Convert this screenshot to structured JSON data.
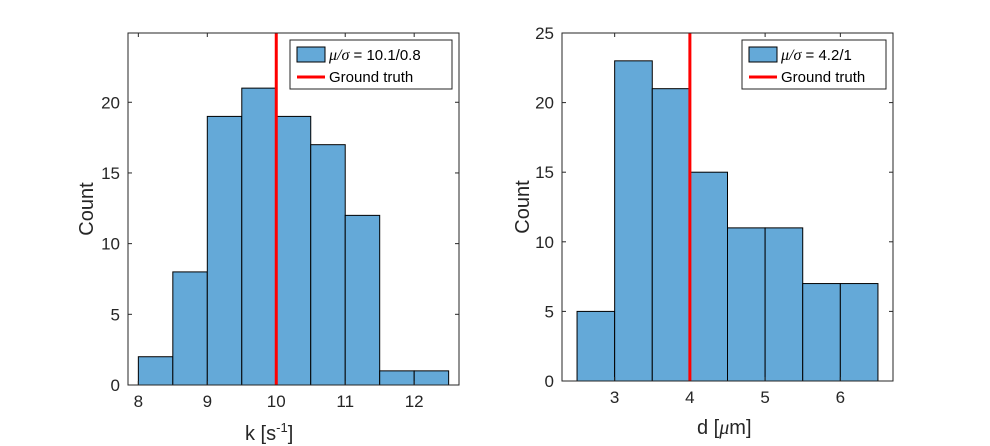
{
  "figure": {
    "bar_color": "#64a9d8",
    "truth_color": "#ff0000",
    "axes_color": "#262626"
  },
  "chart_data": [
    {
      "type": "bar",
      "title": "",
      "xlabel": "k [s",
      "xlabel_superscript": "-1",
      "xlabel_suffix": "]",
      "ylabel": "Count",
      "bin_edges": [
        8,
        8.5,
        9,
        9.5,
        10,
        10.5,
        11,
        11.5,
        12,
        12.5
      ],
      "values": [
        2,
        8,
        19,
        21,
        19,
        17,
        12,
        1,
        1
      ],
      "xlim": [
        7.85,
        12.65
      ],
      "ylim": [
        0,
        24.9
      ],
      "xticks": [
        8,
        9,
        10,
        11,
        12
      ],
      "xtick_labels": [
        "8",
        "9",
        "10",
        "11",
        "12"
      ],
      "yticks": [
        0,
        5,
        10,
        15,
        20
      ],
      "ytick_labels": [
        "0",
        "5",
        "10",
        "15",
        "20"
      ],
      "ground_truth": 10,
      "legend": {
        "position": "top-right",
        "stat_symbol": "μ/σ",
        "stat_value": " = 10.1/0.8",
        "truth_label": "Ground truth"
      }
    },
    {
      "type": "bar",
      "title": "",
      "xlabel": "d [",
      "xlabel_unit": "μ",
      "xlabel_suffix": "m]",
      "ylabel": "Count",
      "bin_edges": [
        2.5,
        3,
        3.5,
        4,
        4.5,
        5,
        5.5,
        6,
        6.5
      ],
      "values": [
        5,
        23,
        21,
        15,
        11,
        11,
        7,
        7
      ],
      "xlim": [
        2.3,
        6.7
      ],
      "ylim": [
        0,
        25
      ],
      "xticks": [
        3,
        4,
        5,
        6
      ],
      "xtick_labels": [
        "3",
        "4",
        "5",
        "6"
      ],
      "yticks": [
        0,
        5,
        10,
        15,
        20,
        25
      ],
      "ytick_labels": [
        "0",
        "5",
        "10",
        "15",
        "20",
        "25"
      ],
      "ground_truth": 4,
      "legend": {
        "position": "top-right",
        "stat_symbol": "μ/σ",
        "stat_value": " = 4.2/1",
        "truth_label": "Ground truth"
      }
    }
  ]
}
